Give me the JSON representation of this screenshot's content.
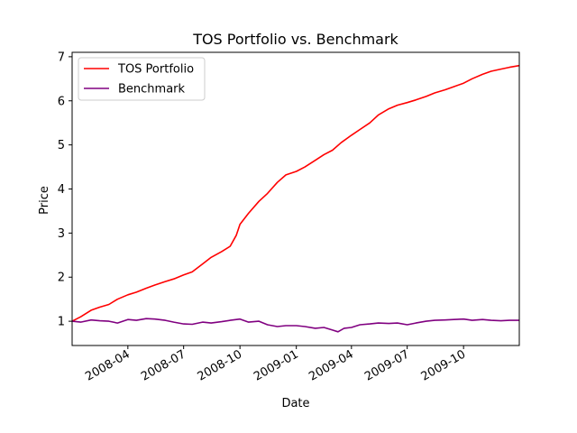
{
  "chart_data": {
    "type": "line",
    "title": "TOS Portfolio vs. Benchmark",
    "xlabel": "Date",
    "ylabel": "Price",
    "xlim": [
      "2008-01-01",
      "2009-12-31"
    ],
    "ylim": [
      0.45,
      7.1
    ],
    "grid": false,
    "legend_position": "top-left",
    "x_ticks": [
      {
        "date": "2008-04-01",
        "label": "2008-04"
      },
      {
        "date": "2008-07-01",
        "label": "2008-07"
      },
      {
        "date": "2008-10-01",
        "label": "2008-10"
      },
      {
        "date": "2009-01-01",
        "label": "2009-01"
      },
      {
        "date": "2009-04-01",
        "label": "2009-04"
      },
      {
        "date": "2009-07-01",
        "label": "2009-07"
      },
      {
        "date": "2009-10-01",
        "label": "2009-10"
      }
    ],
    "y_ticks": [
      1,
      2,
      3,
      4,
      5,
      6,
      7
    ],
    "series": [
      {
        "name": "TOS Portfolio",
        "color": "#ff0000",
        "points": [
          [
            "2008-01-01",
            1.0
          ],
          [
            "2008-01-15",
            1.1
          ],
          [
            "2008-02-01",
            1.25
          ],
          [
            "2008-02-15",
            1.32
          ],
          [
            "2008-03-01",
            1.38
          ],
          [
            "2008-03-15",
            1.5
          ],
          [
            "2008-04-01",
            1.6
          ],
          [
            "2008-04-15",
            1.66
          ],
          [
            "2008-05-01",
            1.75
          ],
          [
            "2008-05-15",
            1.82
          ],
          [
            "2008-06-01",
            1.9
          ],
          [
            "2008-06-15",
            1.96
          ],
          [
            "2008-07-01",
            2.05
          ],
          [
            "2008-07-15",
            2.12
          ],
          [
            "2008-08-01",
            2.3
          ],
          [
            "2008-08-15",
            2.45
          ],
          [
            "2008-09-01",
            2.58
          ],
          [
            "2008-09-15",
            2.7
          ],
          [
            "2008-09-25",
            2.95
          ],
          [
            "2008-10-01",
            3.2
          ],
          [
            "2008-10-15",
            3.45
          ],
          [
            "2008-11-01",
            3.72
          ],
          [
            "2008-11-15",
            3.9
          ],
          [
            "2008-12-01",
            4.15
          ],
          [
            "2008-12-15",
            4.32
          ],
          [
            "2009-01-01",
            4.4
          ],
          [
            "2009-01-15",
            4.5
          ],
          [
            "2009-02-01",
            4.65
          ],
          [
            "2009-02-15",
            4.78
          ],
          [
            "2009-03-01",
            4.88
          ],
          [
            "2009-03-15",
            5.05
          ],
          [
            "2009-04-01",
            5.22
          ],
          [
            "2009-04-15",
            5.35
          ],
          [
            "2009-05-01",
            5.5
          ],
          [
            "2009-05-15",
            5.68
          ],
          [
            "2009-06-01",
            5.82
          ],
          [
            "2009-06-15",
            5.9
          ],
          [
            "2009-07-01",
            5.96
          ],
          [
            "2009-07-15",
            6.02
          ],
          [
            "2009-08-01",
            6.1
          ],
          [
            "2009-08-15",
            6.18
          ],
          [
            "2009-09-01",
            6.25
          ],
          [
            "2009-09-15",
            6.32
          ],
          [
            "2009-10-01",
            6.4
          ],
          [
            "2009-10-15",
            6.5
          ],
          [
            "2009-11-01",
            6.6
          ],
          [
            "2009-11-15",
            6.67
          ],
          [
            "2009-12-01",
            6.72
          ],
          [
            "2009-12-15",
            6.76
          ],
          [
            "2009-12-31",
            6.8
          ]
        ]
      },
      {
        "name": "Benchmark",
        "color": "#800080",
        "points": [
          [
            "2008-01-01",
            1.0
          ],
          [
            "2008-01-15",
            0.98
          ],
          [
            "2008-02-01",
            1.03
          ],
          [
            "2008-02-15",
            1.01
          ],
          [
            "2008-03-01",
            1.0
          ],
          [
            "2008-03-15",
            0.96
          ],
          [
            "2008-04-01",
            1.04
          ],
          [
            "2008-04-15",
            1.02
          ],
          [
            "2008-05-01",
            1.06
          ],
          [
            "2008-05-15",
            1.05
          ],
          [
            "2008-06-01",
            1.02
          ],
          [
            "2008-06-15",
            0.98
          ],
          [
            "2008-07-01",
            0.94
          ],
          [
            "2008-07-15",
            0.93
          ],
          [
            "2008-08-01",
            0.98
          ],
          [
            "2008-08-15",
            0.96
          ],
          [
            "2008-09-01",
            0.99
          ],
          [
            "2008-09-15",
            1.02
          ],
          [
            "2008-10-01",
            1.05
          ],
          [
            "2008-10-15",
            0.98
          ],
          [
            "2008-11-01",
            1.0
          ],
          [
            "2008-11-15",
            0.92
          ],
          [
            "2008-12-01",
            0.88
          ],
          [
            "2008-12-15",
            0.9
          ],
          [
            "2009-01-01",
            0.9
          ],
          [
            "2009-01-15",
            0.88
          ],
          [
            "2009-02-01",
            0.84
          ],
          [
            "2009-02-15",
            0.86
          ],
          [
            "2009-03-01",
            0.8
          ],
          [
            "2009-03-10",
            0.76
          ],
          [
            "2009-03-20",
            0.84
          ],
          [
            "2009-04-01",
            0.86
          ],
          [
            "2009-04-15",
            0.92
          ],
          [
            "2009-05-01",
            0.94
          ],
          [
            "2009-05-15",
            0.96
          ],
          [
            "2009-06-01",
            0.95
          ],
          [
            "2009-06-15",
            0.96
          ],
          [
            "2009-07-01",
            0.92
          ],
          [
            "2009-07-15",
            0.96
          ],
          [
            "2009-08-01",
            1.0
          ],
          [
            "2009-08-15",
            1.02
          ],
          [
            "2009-09-01",
            1.03
          ],
          [
            "2009-09-15",
            1.04
          ],
          [
            "2009-10-01",
            1.05
          ],
          [
            "2009-10-15",
            1.02
          ],
          [
            "2009-11-01",
            1.04
          ],
          [
            "2009-11-15",
            1.02
          ],
          [
            "2009-12-01",
            1.01
          ],
          [
            "2009-12-15",
            1.02
          ],
          [
            "2009-12-31",
            1.02
          ]
        ]
      }
    ]
  }
}
